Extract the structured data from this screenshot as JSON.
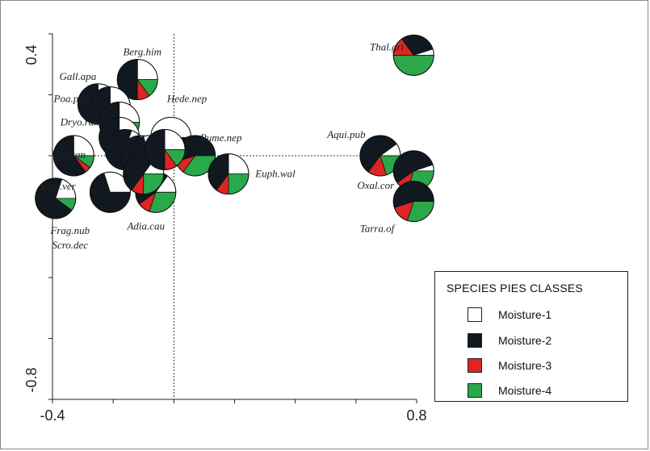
{
  "chart_data": {
    "type": "pie-scatter",
    "xlim": [
      -0.4,
      0.8
    ],
    "ylim": [
      -0.8,
      0.4
    ],
    "x_tick_labels": [
      "-0.4",
      "0.8"
    ],
    "y_tick_labels": [
      "0.4",
      "-0.8"
    ],
    "reference_lines": {
      "x": 0,
      "y": 0
    },
    "grid": false,
    "legend": {
      "title": "SPECIES PIES CLASSES",
      "placement": "right",
      "items": [
        {
          "label": "Moisture-1",
          "color": "#ffffff"
        },
        {
          "label": "Moisture-2",
          "color": "#111820"
        },
        {
          "label": "Moisture-3",
          "color": "#e02424"
        },
        {
          "label": "Moisture-4",
          "color": "#2aa84a"
        }
      ]
    },
    "series_colors": [
      "#ffffff",
      "#111820",
      "#e02424",
      "#2aa84a"
    ],
    "points": [
      {
        "label": "Thal.gri",
        "x": 0.79,
        "y": 0.33,
        "values": [
          0.05,
          0.3,
          0.15,
          0.5
        ]
      },
      {
        "label": "Berg.him",
        "x": -0.12,
        "y": 0.25,
        "values": [
          0.25,
          0.5,
          0.1,
          0.15
        ]
      },
      {
        "label": "Gall.apa",
        "x": -0.25,
        "y": 0.17,
        "values": [
          0.25,
          0.75,
          0,
          0
        ]
      },
      {
        "label": "Poa.prat",
        "x": -0.21,
        "y": 0.16,
        "values": [
          0.25,
          0.6,
          0.15,
          0
        ]
      },
      {
        "label": "Dryo.ram",
        "x": -0.18,
        "y": 0.11,
        "values": [
          0.25,
          0.5,
          0.1,
          0.15
        ]
      },
      {
        "label": "Hede.nep",
        "x": -0.01,
        "y": 0.06,
        "values": [
          0.5,
          0.5,
          0,
          0
        ]
      },
      {
        "label": "Rume.nep",
        "x": 0.07,
        "y": 0.0,
        "values": [
          0,
          0.55,
          0.1,
          0.35
        ]
      },
      {
        "label": "Viol.can",
        "x": -0.33,
        "y": 0.0,
        "values": [
          0.25,
          0.6,
          0.05,
          0.1
        ]
      },
      {
        "label": "Aqui.pub",
        "x": 0.68,
        "y": 0.0,
        "values": [
          0.1,
          0.55,
          0.15,
          0.2
        ]
      },
      {
        "label": "Euph.wal",
        "x": 0.18,
        "y": -0.06,
        "values": [
          0.25,
          0.4,
          0.1,
          0.25
        ]
      },
      {
        "label": "Oxal.cor",
        "x": 0.79,
        "y": -0.05,
        "values": [
          0.05,
          0.55,
          0.1,
          0.3
        ]
      },
      {
        "label": "Adia.cau",
        "x": -0.06,
        "y": -0.12,
        "values": [
          0.15,
          0.45,
          0.1,
          0.3
        ]
      },
      {
        "label": "Poly.ver",
        "x": -0.39,
        "y": -0.14,
        "values": [
          0.2,
          0.7,
          0,
          0.1
        ]
      },
      {
        "label": "Tarra.of",
        "x": 0.79,
        "y": -0.15,
        "values": [
          0,
          0.55,
          0.15,
          0.3
        ]
      },
      {
        "label": "",
        "x": -0.21,
        "y": -0.12,
        "values": [
          0.3,
          0.7,
          0,
          0
        ]
      },
      {
        "label": "",
        "x": -0.18,
        "y": 0.06,
        "values": [
          0.25,
          0.55,
          0.05,
          0.15
        ]
      },
      {
        "label": "",
        "x": -0.16,
        "y": 0.02,
        "values": [
          0.2,
          0.55,
          0.1,
          0.15
        ]
      },
      {
        "label": "",
        "x": -0.11,
        "y": 0.0,
        "values": [
          0.25,
          0.45,
          0.1,
          0.2
        ]
      },
      {
        "label": "",
        "x": -0.08,
        "y": 0.0,
        "values": [
          0.3,
          0.4,
          0.1,
          0.2
        ]
      },
      {
        "label": "",
        "x": -0.1,
        "y": -0.06,
        "values": [
          0.15,
          0.5,
          0.1,
          0.25
        ]
      },
      {
        "label": "",
        "x": -0.03,
        "y": 0.02,
        "values": [
          0.25,
          0.5,
          0.1,
          0.15
        ]
      }
    ],
    "free_labels": [
      "Frag.nub",
      "Scro.dec"
    ]
  }
}
